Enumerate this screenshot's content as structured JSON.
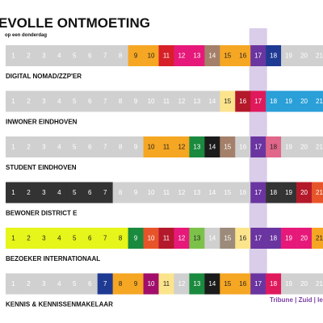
{
  "chart_data": {
    "type": "heatmap",
    "title": "EVOLLE ONTMOETING",
    "subtitle": "op een donderdag",
    "hours": [
      1,
      2,
      3,
      4,
      5,
      6,
      7,
      8,
      9,
      10,
      11,
      12,
      13,
      14,
      15,
      16,
      17,
      18,
      19,
      20,
      21
    ],
    "highlight_hour": 17,
    "highlight_color": "#d9cdea",
    "annotation": "Tribune | Zuid | lezing",
    "rows": [
      {
        "cells": [
          "#d0d0d0",
          "#d0d0d0",
          "#d0d0d0",
          "#d0d0d0",
          "#d0d0d0",
          "#d0d0d0",
          "#d0d0d0",
          "#d0d0d0",
          "#f5a623",
          "#f5a623",
          "#d72027",
          "#e6197a",
          "#e6197a",
          "#a4806a",
          "#f5a623",
          "#f5a623",
          "#6a35a0",
          "#1f3a93",
          "#d0d0d0",
          "#d0d0d0",
          "#d0d0d0"
        ],
        "label": "DIGITAL NOMAD/ZZP'ER"
      },
      {
        "cells": [
          "#d0d0d0",
          "#d0d0d0",
          "#d0d0d0",
          "#d0d0d0",
          "#d0d0d0",
          "#d0d0d0",
          "#d0d0d0",
          "#d0d0d0",
          "#d0d0d0",
          "#d0d0d0",
          "#d0d0d0",
          "#d0d0d0",
          "#d0d0d0",
          "#d0d0d0",
          "#fbe48c",
          "#b3192a",
          "#e0195d",
          "#2a9fd8",
          "#2a9fd8",
          "#2a9fd8",
          "#2a9fd8"
        ],
        "label": "INWONER EINDHOVEN"
      },
      {
        "cells": [
          "#d0d0d0",
          "#d0d0d0",
          "#d0d0d0",
          "#d0d0d0",
          "#d0d0d0",
          "#d0d0d0",
          "#d0d0d0",
          "#d0d0d0",
          "#d0d0d0",
          "#f5a623",
          "#f5a623",
          "#f5a623",
          "#1a8a3e",
          "#1b1b1b",
          "#a4806a",
          "#d0d0d0",
          "#6a35a0",
          "#e0668a",
          "#d0d0d0",
          "#d0d0d0",
          "#d0d0d0"
        ],
        "label": "STUDENT EINDHOVEN"
      },
      {
        "cells": [
          "#333333",
          "#333333",
          "#333333",
          "#333333",
          "#333333",
          "#333333",
          "#333333",
          "#d0d0d0",
          "#d0d0d0",
          "#d0d0d0",
          "#d0d0d0",
          "#d0d0d0",
          "#d0d0d0",
          "#d0d0d0",
          "#d0d0d0",
          "#d0d0d0",
          "#6a35a0",
          "#333333",
          "#333333",
          "#b3192a",
          "#e8542a"
        ],
        "label": "BEWONER DISTRICT E"
      },
      {
        "cells": [
          "#e6f51a",
          "#e6f51a",
          "#e6f51a",
          "#e6f51a",
          "#e6f51a",
          "#e6f51a",
          "#e6f51a",
          "#e6f51a",
          "#1a8a3e",
          "#e8542a",
          "#b3192a",
          "#e6197a",
          "#7cc24a",
          "#d0d0d0",
          "#9c8b7a",
          "#fbe48c",
          "#6a35a0",
          "#6a35a0",
          "#e6197a",
          "#e6197a",
          "#f5a623"
        ],
        "label": "BEZOEKER INTERNATIONAAL"
      },
      {
        "cells": [
          "#d0d0d0",
          "#d0d0d0",
          "#d0d0d0",
          "#d0d0d0",
          "#d0d0d0",
          "#d0d0d0",
          "#1f3a93",
          "#f5a623",
          "#f5a623",
          "#a10f6b",
          "#fbe48c",
          "#d0d0d0",
          "#1a8a3e",
          "#1b1b1b",
          "#f5a623",
          "#f5a623",
          "#6a35a0",
          "#e0195d",
          "#d0d0d0",
          "#d0d0d0",
          "#d0d0d0"
        ],
        "label": "KENNIS & KENNISSENMAKELAAR"
      }
    ]
  }
}
